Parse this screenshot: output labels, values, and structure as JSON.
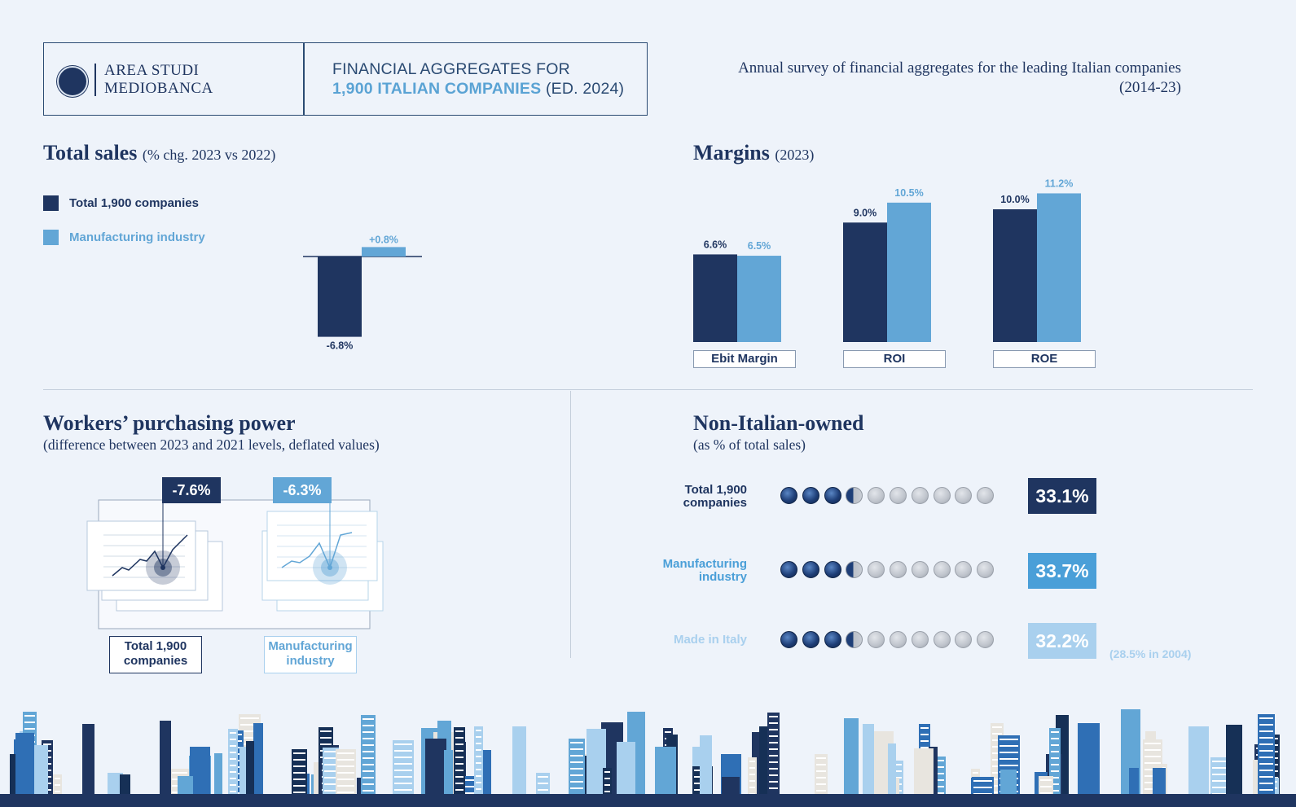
{
  "header": {
    "logo_line1": "AREA STUDI",
    "logo_line2": "MEDIOBANCA",
    "title_line1": "FINANCIAL AGGREGATES FOR",
    "title_highlight": "1,900 ITALIAN COMPANIES",
    "title_edition": " (ED. 2024)",
    "subtitle_line1": "Annual survey of financial aggregates for the leading Italian companies",
    "subtitle_line2": "(2014-23)"
  },
  "colors": {
    "dark": "#1f3560",
    "mid": "#62a6d6",
    "light": "#a9d0ee",
    "accent_box": "#4a9fd8"
  },
  "total_sales": {
    "title": "Total sales",
    "title_note": "(% chg. 2023 vs 2022)",
    "legend": [
      {
        "label": "Total 1,900 companies",
        "color": "#1f3560"
      },
      {
        "label": "Manufacturing industry",
        "color": "#62a6d6"
      }
    ]
  },
  "margins": {
    "title": "Margins",
    "title_note": "(2023)",
    "categories": [
      "Ebit Margin",
      "ROI",
      "ROE"
    ]
  },
  "purchasing": {
    "title": "Workers’ purchasing power",
    "subtitle": "(difference between 2023 and 2021 levels, deflated values)",
    "items": [
      {
        "value": "-7.6%",
        "label_line1": "Total 1,900",
        "label_line2": "companies",
        "color": "#1f3560"
      },
      {
        "value": "-6.3%",
        "label_line1": "Manufacturing",
        "label_line2": "industry",
        "color": "#62a6d6"
      }
    ]
  },
  "non_italian": {
    "title": "Non-Italian-owned",
    "subtitle": "(as % of total sales)",
    "note": "(28.5% in 2004)",
    "rows": [
      {
        "label_line1": "Total 1,900",
        "label_line2": "companies",
        "value": "33.1%",
        "filled": 3,
        "color": "#1f3560",
        "box": "#1f3560"
      },
      {
        "label_line1": "Manufacturing",
        "label_line2": "industry",
        "value": "33.7%",
        "filled": 3,
        "color": "#4a9fd8",
        "box": "#4a9fd8"
      },
      {
        "label_line1": "Made in Italy",
        "label_line2": "",
        "value": "32.2%",
        "filled": 3,
        "color": "#a9d0ee",
        "box": "#a9d0ee"
      }
    ],
    "total_icons": 10
  },
  "chart_data": [
    {
      "type": "bar",
      "title": "Total sales",
      "subtitle": "(% chg. 2023 vs 2022)",
      "categories": [
        ""
      ],
      "series": [
        {
          "name": "Total 1,900 companies",
          "values": [
            -6.8
          ],
          "labels": [
            "-6.8%"
          ]
        },
        {
          "name": "Manufacturing industry",
          "values": [
            0.8
          ],
          "labels": [
            "+0.8%"
          ]
        }
      ],
      "legend": "top-left",
      "grid": false
    },
    {
      "type": "bar",
      "title": "Margins",
      "subtitle": "(2023)",
      "categories": [
        "Ebit Margin",
        "ROI",
        "ROE"
      ],
      "series": [
        {
          "name": "Total 1,900 companies",
          "values": [
            6.6,
            9.0,
            10.0
          ],
          "labels": [
            "6.6%",
            "9.0%",
            "10.0%"
          ]
        },
        {
          "name": "Manufacturing industry",
          "values": [
            6.5,
            10.5,
            11.2
          ],
          "labels": [
            "6.5%",
            "10.5%",
            "11.2%"
          ]
        }
      ],
      "ylim": [
        0,
        12
      ],
      "grid": false
    }
  ]
}
